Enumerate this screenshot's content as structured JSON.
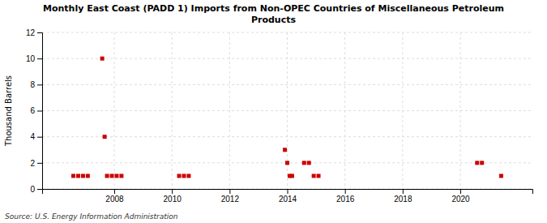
{
  "chart_data": {
    "type": "scatter",
    "title": "Monthly East Coast (PADD 1) Imports from Non-OPEC Countries of Miscellaneous Petroleum\nProducts",
    "ylabel": "Thousand Barrels",
    "source": "Source: U.S. Energy Information Administration",
    "color": "#cc0000",
    "marker": "square",
    "x": [
      2006.583,
      2006.75,
      2006.917,
      2007.083,
      2007.583,
      2007.667,
      2007.75,
      2007.917,
      2008.083,
      2008.25,
      2010.25,
      2010.417,
      2010.583,
      2013.917,
      2014.0,
      2014.083,
      2014.167,
      2014.583,
      2014.75,
      2014.917,
      2015.083,
      2020.583,
      2020.75,
      2021.417
    ],
    "values": [
      1,
      1,
      1,
      1,
      10,
      4,
      1,
      1,
      1,
      1,
      1,
      1,
      1,
      3,
      2,
      1,
      1,
      2,
      2,
      1,
      1,
      2,
      2,
      1
    ],
    "xlim": [
      2005.5,
      2022.5
    ],
    "xticks": [
      2008,
      2010,
      2012,
      2014,
      2016,
      2018,
      2020
    ],
    "ylim": [
      0,
      12
    ],
    "yticks": [
      0,
      2,
      4,
      6,
      8,
      10,
      12
    ],
    "grid": true
  }
}
